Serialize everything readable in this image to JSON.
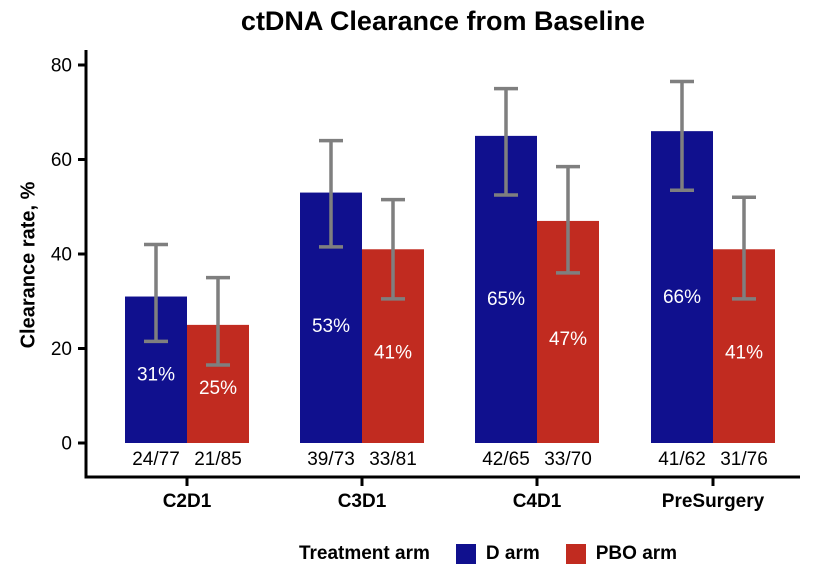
{
  "chart_data": {
    "type": "bar",
    "title": "ctDNA Clearance from Baseline",
    "ylabel": "Clearance rate, %",
    "xlabel": "",
    "categories": [
      "C2D1",
      "C3D1",
      "C4D1",
      "PreSurgery"
    ],
    "ylim": [
      0,
      80
    ],
    "yticks": [
      0,
      20,
      40,
      60,
      80
    ],
    "grid": false,
    "legend_position": "bottom",
    "legend_title": "Treatment arm",
    "series": [
      {
        "name": "D arm",
        "color": "#10108E",
        "values": [
          31,
          53,
          65,
          66
        ],
        "bar_labels": [
          "31%",
          "53%",
          "65%",
          "66%"
        ],
        "fractions": [
          "24/77",
          "39/73",
          "42/65",
          "41/62"
        ],
        "ci_low": [
          21.5,
          41.5,
          52.5,
          53.5
        ],
        "ci_high": [
          42,
          64,
          75,
          76.5
        ]
      },
      {
        "name": "PBO arm",
        "color": "#C12B20",
        "values": [
          25,
          41,
          47,
          41
        ],
        "bar_labels": [
          "25%",
          "41%",
          "47%",
          "41%"
        ],
        "fractions": [
          "21/85",
          "33/81",
          "33/70",
          "31/76"
        ],
        "ci_low": [
          16.5,
          30.5,
          36,
          30.5
        ],
        "ci_high": [
          35,
          51.5,
          58.5,
          52
        ]
      }
    ],
    "error_bar_color": "#7F7F7F",
    "axis_color": "#000000",
    "bar_label_color": "#FFFFFF",
    "fraction_label_color": "#000000"
  }
}
